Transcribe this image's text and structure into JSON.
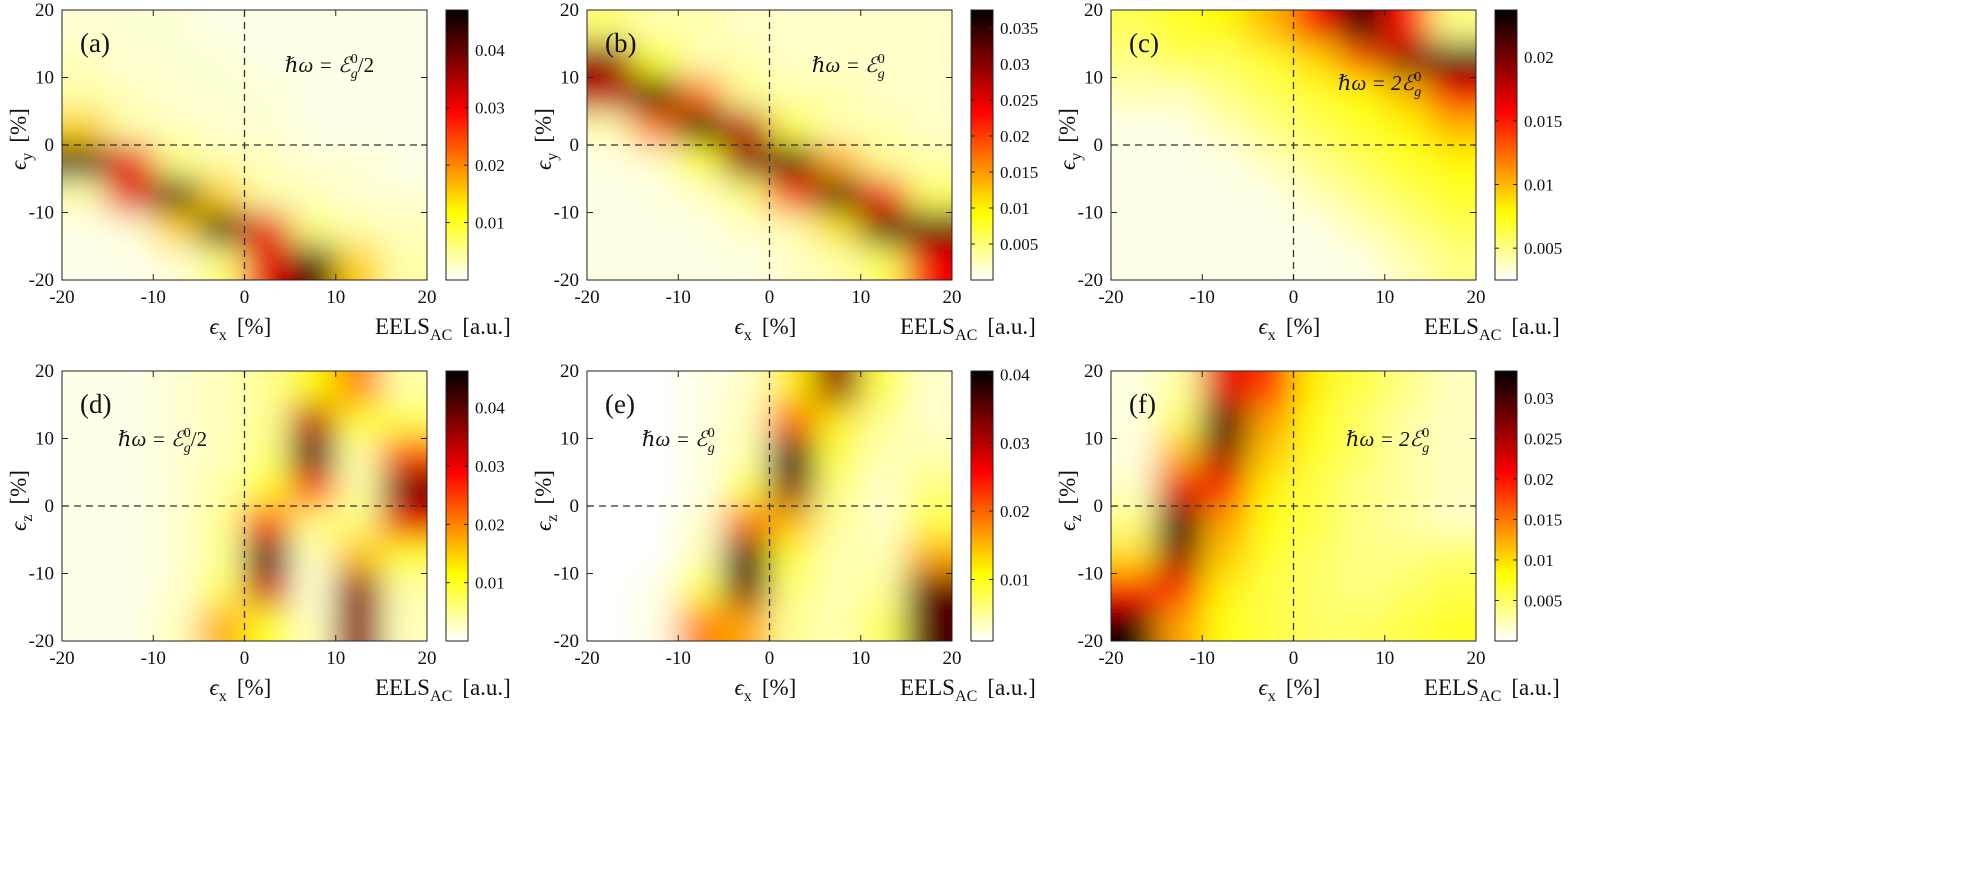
{
  "chart_data": [
    {
      "type": "heatmap",
      "label": "(a)",
      "annotation": {
        "prefix": "ℏω = ",
        "symbol": "ℰ",
        "superscript": "0",
        "subscript": "g",
        "suffix": "/2"
      },
      "xlabel": {
        "symbol": "ϵ",
        "subscript": "x",
        "unit": "[%]"
      },
      "ylabel": {
        "symbol": "ϵ",
        "subscript": "y",
        "unit": "[%]"
      },
      "colorbar_label": {
        "text": "EELS",
        "subscript": "AC",
        "unit": "[a.u.]"
      },
      "x": [
        -17.5,
        -12.5,
        -7.5,
        -2.5,
        2.5,
        7.5,
        12.5,
        17.5
      ],
      "y": [
        17.5,
        12.5,
        7.5,
        2.5,
        -2.5,
        -7.5,
        -12.5,
        -17.5
      ],
      "z": [
        [
          0.002,
          0.002,
          0.002,
          0.001,
          0.001,
          0.001,
          0.001,
          0.001
        ],
        [
          0.003,
          0.002,
          0.002,
          0.002,
          0.001,
          0.001,
          0.001,
          0.001
        ],
        [
          0.004,
          0.003,
          0.002,
          0.002,
          0.002,
          0.001,
          0.001,
          0.001
        ],
        [
          0.015,
          0.004,
          0.003,
          0.002,
          0.002,
          0.001,
          0.001,
          0.001
        ],
        [
          0.044,
          0.031,
          0.006,
          0.004,
          0.003,
          0.002,
          0.002,
          0.001
        ],
        [
          0.004,
          0.031,
          0.044,
          0.015,
          0.004,
          0.003,
          0.002,
          0.002
        ],
        [
          0.001,
          0.002,
          0.015,
          0.044,
          0.031,
          0.006,
          0.004,
          0.003
        ],
        [
          0.001,
          0.001,
          0.002,
          0.006,
          0.031,
          0.044,
          0.015,
          0.004
        ]
      ],
      "xlim": [
        -20,
        20
      ],
      "ylim": [
        -20,
        20
      ],
      "xticks": [
        -20,
        -10,
        0,
        10,
        20
      ],
      "yticks": [
        -20,
        -10,
        0,
        10,
        20
      ],
      "clim": [
        0,
        0.047
      ],
      "cticks": [
        0.01,
        0.02,
        0.03,
        0.04
      ],
      "colormap": "hot_r",
      "reference_lines": {
        "x": 0,
        "y": 0
      }
    },
    {
      "type": "heatmap",
      "label": "(b)",
      "annotation": {
        "prefix": "ℏω = ",
        "symbol": "ℰ",
        "superscript": "0",
        "subscript": "g"
      },
      "xlabel": {
        "symbol": "ϵ",
        "subscript": "x",
        "unit": "[%]"
      },
      "ylabel": {
        "symbol": "ϵ",
        "subscript": "y",
        "unit": "[%]"
      },
      "colorbar_label": {
        "text": "EELS",
        "subscript": "AC",
        "unit": "[a.u.]"
      },
      "x": [
        -17.5,
        -12.5,
        -7.5,
        -2.5,
        2.5,
        7.5,
        12.5,
        17.5
      ],
      "y": [
        17.5,
        12.5,
        7.5,
        2.5,
        -2.5,
        -7.5,
        -12.5,
        -17.5
      ],
      "z": [
        [
          0.005,
          0.003,
          0.003,
          0.002,
          0.002,
          0.002,
          0.002,
          0.002
        ],
        [
          0.03,
          0.009,
          0.003,
          0.003,
          0.002,
          0.002,
          0.002,
          0.002
        ],
        [
          0.027,
          0.038,
          0.017,
          0.004,
          0.003,
          0.003,
          0.002,
          0.002
        ],
        [
          0.003,
          0.017,
          0.038,
          0.027,
          0.007,
          0.003,
          0.003,
          0.002
        ],
        [
          0.001,
          0.002,
          0.009,
          0.03,
          0.036,
          0.014,
          0.004,
          0.003
        ],
        [
          0.001,
          0.001,
          0.002,
          0.005,
          0.02,
          0.039,
          0.024,
          0.006
        ],
        [
          0.001,
          0.001,
          0.001,
          0.002,
          0.003,
          0.011,
          0.034,
          0.034
        ],
        [
          0.001,
          0.001,
          0.001,
          0.001,
          0.002,
          0.003,
          0.006,
          0.024
        ]
      ],
      "xlim": [
        -20,
        20
      ],
      "ylim": [
        -20,
        20
      ],
      "xticks": [
        -20,
        -10,
        0,
        10,
        20
      ],
      "yticks": [
        -20,
        -10,
        0,
        10,
        20
      ],
      "clim": [
        0,
        0.0375
      ],
      "cticks": [
        0.005,
        0.01,
        0.015,
        0.02,
        0.025,
        0.03,
        0.035
      ],
      "colormap": "hot_r",
      "reference_lines": {
        "x": 0,
        "y": 0
      }
    },
    {
      "type": "heatmap",
      "label": "(c)",
      "annotation": {
        "prefix": "ℏω = 2",
        "symbol": "ℰ",
        "superscript": "0",
        "subscript": "g"
      },
      "xlabel": {
        "symbol": "ϵ",
        "subscript": "x",
        "unit": "[%]"
      },
      "ylabel": {
        "symbol": "ϵ",
        "subscript": "y",
        "unit": "[%]"
      },
      "colorbar_label": {
        "text": "EELS",
        "subscript": "AC",
        "unit": "[a.u.]"
      },
      "x": [
        -17.5,
        -12.5,
        -7.5,
        -2.5,
        2.5,
        7.5,
        12.5,
        17.5
      ],
      "y": [
        17.5,
        12.5,
        7.5,
        2.5,
        -2.5,
        -7.5,
        -12.5,
        -17.5
      ],
      "z": [
        [
          0.006,
          0.007,
          0.008,
          0.01,
          0.016,
          0.024,
          0.015,
          0.005
        ],
        [
          0.005,
          0.006,
          0.006,
          0.007,
          0.009,
          0.013,
          0.02,
          0.024
        ],
        [
          0.004,
          0.004,
          0.005,
          0.006,
          0.007,
          0.008,
          0.01,
          0.016
        ],
        [
          0.003,
          0.003,
          0.004,
          0.005,
          0.006,
          0.007,
          0.008,
          0.01
        ],
        [
          0.003,
          0.003,
          0.003,
          0.004,
          0.005,
          0.006,
          0.007,
          0.008
        ],
        [
          0.003,
          0.003,
          0.003,
          0.003,
          0.004,
          0.005,
          0.006,
          0.007
        ],
        [
          0.003,
          0.003,
          0.003,
          0.003,
          0.003,
          0.004,
          0.005,
          0.006
        ],
        [
          0.003,
          0.003,
          0.003,
          0.003,
          0.003,
          0.003,
          0.004,
          0.005
        ]
      ],
      "xlim": [
        -20,
        20
      ],
      "ylim": [
        -20,
        20
      ],
      "xticks": [
        -20,
        -10,
        0,
        10,
        20
      ],
      "yticks": [
        -20,
        -10,
        0,
        10,
        20
      ],
      "clim": [
        0.0025,
        0.0237
      ],
      "cticks": [
        0.005,
        0.01,
        0.015,
        0.02
      ],
      "colormap": "hot_r",
      "reference_lines": {
        "x": 0,
        "y": 0
      }
    },
    {
      "type": "heatmap",
      "label": "(d)",
      "annotation": {
        "prefix": "ℏω = ",
        "symbol": "ℰ",
        "superscript": "0",
        "subscript": "g",
        "suffix": "/2"
      },
      "xlabel": {
        "symbol": "ϵ",
        "subscript": "x",
        "unit": "[%]"
      },
      "ylabel": {
        "symbol": "ϵ",
        "subscript": "z",
        "unit": "[%]"
      },
      "colorbar_label": {
        "text": "EELS",
        "subscript": "AC",
        "unit": "[a.u.]"
      },
      "x": [
        -17.5,
        -12.5,
        -7.5,
        -2.5,
        2.5,
        7.5,
        12.5,
        17.5
      ],
      "y": [
        17.5,
        12.5,
        7.5,
        2.5,
        -2.5,
        -7.5,
        -12.5,
        -17.5
      ],
      "z": [
        [
          0.001,
          0.001,
          0.002,
          0.003,
          0.005,
          0.012,
          0.02,
          0.004
        ],
        [
          0.001,
          0.001,
          0.002,
          0.003,
          0.005,
          0.033,
          0.01,
          0.008
        ],
        [
          0.001,
          0.001,
          0.002,
          0.003,
          0.006,
          0.045,
          0.004,
          0.024
        ],
        [
          0.001,
          0.001,
          0.002,
          0.004,
          0.01,
          0.025,
          0.004,
          0.04
        ],
        [
          0.001,
          0.001,
          0.002,
          0.005,
          0.025,
          0.006,
          0.006,
          0.03
        ],
        [
          0.001,
          0.001,
          0.002,
          0.005,
          0.045,
          0.003,
          0.016,
          0.01
        ],
        [
          0.001,
          0.001,
          0.002,
          0.007,
          0.032,
          0.002,
          0.037,
          0.004
        ],
        [
          0.001,
          0.001,
          0.003,
          0.017,
          0.01,
          0.003,
          0.037,
          0.003
        ]
      ],
      "xlim": [
        -20,
        20
      ],
      "ylim": [
        -20,
        20
      ],
      "xticks": [
        -20,
        -10,
        0,
        10,
        20
      ],
      "yticks": [
        -20,
        -10,
        0,
        10,
        20
      ],
      "clim": [
        0,
        0.0463
      ],
      "cticks": [
        0.01,
        0.02,
        0.03,
        0.04
      ],
      "colormap": "hot_r",
      "reference_lines": {
        "x": 0,
        "y": 0
      }
    },
    {
      "type": "heatmap",
      "label": "(e)",
      "annotation": {
        "prefix": "ℏω = ",
        "symbol": "ℰ",
        "superscript": "0",
        "subscript": "g"
      },
      "xlabel": {
        "symbol": "ϵ",
        "subscript": "x",
        "unit": "[%]"
      },
      "ylabel": {
        "symbol": "ϵ",
        "subscript": "z",
        "unit": "[%]"
      },
      "colorbar_label": {
        "text": "EELS",
        "subscript": "AC",
        "unit": "[a.u.]"
      },
      "x": [
        -17.5,
        -12.5,
        -7.5,
        -2.5,
        2.5,
        7.5,
        12.5,
        17.5
      ],
      "y": [
        17.5,
        12.5,
        7.5,
        2.5,
        -2.5,
        -7.5,
        -12.5,
        -17.5
      ],
      "z": [
        [
          0.001,
          0.001,
          0.002,
          0.003,
          0.012,
          0.032,
          0.008,
          0.003
        ],
        [
          0.001,
          0.001,
          0.002,
          0.004,
          0.02,
          0.012,
          0.005,
          0.003
        ],
        [
          0.001,
          0.001,
          0.002,
          0.004,
          0.04,
          0.008,
          0.004,
          0.004
        ],
        [
          0.001,
          0.001,
          0.002,
          0.008,
          0.033,
          0.006,
          0.003,
          0.006
        ],
        [
          0.001,
          0.001,
          0.003,
          0.019,
          0.015,
          0.005,
          0.003,
          0.008
        ],
        [
          0.001,
          0.001,
          0.004,
          0.039,
          0.009,
          0.004,
          0.004,
          0.016
        ],
        [
          0.001,
          0.002,
          0.008,
          0.034,
          0.006,
          0.004,
          0.005,
          0.035
        ],
        [
          0.001,
          0.002,
          0.018,
          0.016,
          0.005,
          0.004,
          0.007,
          0.036
        ]
      ],
      "xlim": [
        -20,
        20
      ],
      "ylim": [
        -20,
        20
      ],
      "xticks": [
        -20,
        -10,
        0,
        10,
        20
      ],
      "yticks": [
        -20,
        -10,
        0,
        10,
        20
      ],
      "clim": [
        0.001,
        0.0405
      ],
      "cticks": [
        0.01,
        0.02,
        0.03,
        0.04
      ],
      "colormap": "hot_r",
      "reference_lines": {
        "x": 0,
        "y": 0
      }
    },
    {
      "type": "heatmap",
      "label": "(f)",
      "annotation": {
        "prefix": "ℏω = 2",
        "symbol": "ℰ",
        "superscript": "0",
        "subscript": "g"
      },
      "xlabel": {
        "symbol": "ϵ",
        "subscript": "x",
        "unit": "[%]"
      },
      "ylabel": {
        "symbol": "ϵ",
        "subscript": "z",
        "unit": "[%]"
      },
      "colorbar_label": {
        "text": "EELS",
        "subscript": "AC",
        "unit": "[a.u.]"
      },
      "x": [
        -17.5,
        -12.5,
        -7.5,
        -2.5,
        2.5,
        7.5,
        12.5,
        17.5
      ],
      "y": [
        17.5,
        12.5,
        7.5,
        2.5,
        -2.5,
        -7.5,
        -12.5,
        -17.5
      ],
      "z": [
        [
          0.001,
          0.003,
          0.022,
          0.018,
          0.009,
          0.006,
          0.004,
          0.002
        ],
        [
          0.001,
          0.005,
          0.033,
          0.013,
          0.008,
          0.005,
          0.003,
          0.002
        ],
        [
          0.001,
          0.012,
          0.026,
          0.011,
          0.007,
          0.005,
          0.003,
          0.002
        ],
        [
          0.002,
          0.022,
          0.019,
          0.009,
          0.006,
          0.004,
          0.003,
          0.002
        ],
        [
          0.004,
          0.033,
          0.013,
          0.008,
          0.006,
          0.004,
          0.003,
          0.002
        ],
        [
          0.01,
          0.027,
          0.011,
          0.007,
          0.005,
          0.004,
          0.004,
          0.005
        ],
        [
          0.02,
          0.019,
          0.009,
          0.006,
          0.005,
          0.004,
          0.005,
          0.006
        ],
        [
          0.033,
          0.013,
          0.008,
          0.006,
          0.005,
          0.005,
          0.006,
          0.007
        ]
      ],
      "xlim": [
        -20,
        20
      ],
      "ylim": [
        -20,
        20
      ],
      "xticks": [
        -20,
        -10,
        0,
        10,
        20
      ],
      "yticks": [
        -20,
        -10,
        0,
        10,
        20
      ],
      "clim": [
        0,
        0.0333
      ],
      "cticks": [
        0.005,
        0.01,
        0.015,
        0.02,
        0.025,
        0.03
      ],
      "colormap": "hot_r",
      "reference_lines": {
        "x": 0,
        "y": 0
      }
    }
  ]
}
